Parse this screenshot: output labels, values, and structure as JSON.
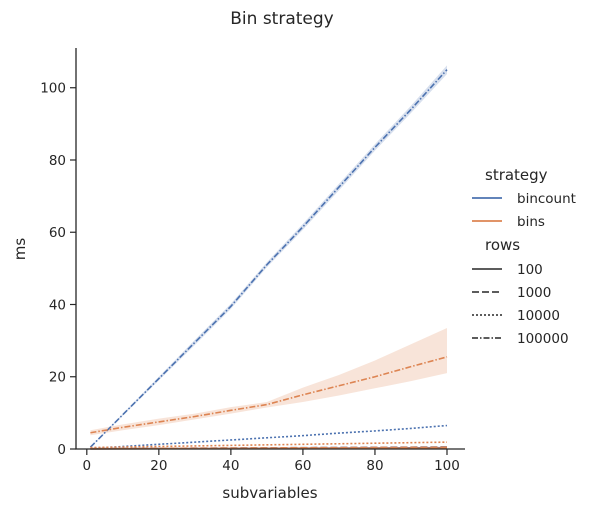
{
  "chart_data": {
    "type": "line",
    "title": "Bin strategy",
    "xlabel": "subvariables",
    "ylabel": "ms",
    "xlim": [
      -3,
      105
    ],
    "ylim": [
      0,
      111
    ],
    "xticks": [
      0,
      20,
      40,
      60,
      80,
      100
    ],
    "yticks": [
      0,
      20,
      40,
      60,
      80,
      100
    ],
    "grid": false,
    "legend_position": "right",
    "legend": {
      "hue_title": "strategy",
      "hue_entries": [
        {
          "label": "bincount",
          "color": "#4c72b0"
        },
        {
          "label": "bins",
          "color": "#dd8452"
        }
      ],
      "style_title": "rows",
      "style_entries": [
        {
          "label": "100",
          "dash": "solid"
        },
        {
          "label": "1000",
          "dash": "dashed"
        },
        {
          "label": "10000",
          "dash": "dotted"
        },
        {
          "label": "100000",
          "dash": "dashdot"
        }
      ]
    },
    "series": [
      {
        "strategy": "bincount",
        "rows": "100",
        "color": "#4c72b0",
        "dash": "solid",
        "x": [
          1,
          10,
          20,
          30,
          40,
          50,
          60,
          70,
          80,
          90,
          100
        ],
        "y": [
          0.05,
          0.08,
          0.11,
          0.14,
          0.17,
          0.2,
          0.23,
          0.26,
          0.29,
          0.32,
          0.35
        ]
      },
      {
        "strategy": "bincount",
        "rows": "1000",
        "color": "#4c72b0",
        "dash": "dashed",
        "x": [
          1,
          10,
          20,
          30,
          40,
          50,
          60,
          70,
          80,
          90,
          100
        ],
        "y": [
          0.08,
          0.12,
          0.17,
          0.22,
          0.27,
          0.32,
          0.37,
          0.42,
          0.47,
          0.52,
          0.57
        ]
      },
      {
        "strategy": "bincount",
        "rows": "10000",
        "color": "#4c72b0",
        "dash": "dotted",
        "x": [
          1,
          10,
          20,
          30,
          40,
          50,
          60,
          70,
          80,
          90,
          100
        ],
        "y": [
          0.15,
          0.7,
          1.3,
          1.9,
          2.5,
          3.1,
          3.7,
          4.4,
          5.0,
          5.7,
          6.5
        ]
      },
      {
        "strategy": "bincount",
        "rows": "100000",
        "color": "#4c72b0",
        "dash": "dashdot",
        "x": [
          1,
          10,
          20,
          30,
          40,
          50,
          60,
          70,
          80,
          90,
          100
        ],
        "y": [
          0.5,
          9.5,
          19.5,
          29.5,
          39.5,
          51.0,
          61.5,
          72.5,
          83.5,
          94.0,
          105.0
        ],
        "ci_low": [
          0.4,
          9.2,
          19.0,
          28.8,
          38.8,
          50.3,
          60.7,
          71.6,
          82.6,
          93.0,
          103.8
        ],
        "ci_high": [
          0.6,
          9.8,
          20.0,
          30.2,
          40.2,
          51.7,
          62.3,
          73.4,
          84.4,
          95.0,
          106.2
        ]
      },
      {
        "strategy": "bins",
        "rows": "100",
        "color": "#dd8452",
        "dash": "solid",
        "x": [
          1,
          10,
          20,
          30,
          40,
          50,
          60,
          70,
          80,
          90,
          100
        ],
        "y": [
          0.03,
          0.05,
          0.07,
          0.09,
          0.11,
          0.13,
          0.15,
          0.17,
          0.19,
          0.21,
          0.23
        ]
      },
      {
        "strategy": "bins",
        "rows": "1000",
        "color": "#dd8452",
        "dash": "dashed",
        "x": [
          1,
          10,
          20,
          30,
          40,
          50,
          60,
          70,
          80,
          90,
          100
        ],
        "y": [
          0.1,
          0.14,
          0.18,
          0.22,
          0.26,
          0.3,
          0.34,
          0.38,
          0.42,
          0.46,
          0.5
        ]
      },
      {
        "strategy": "bins",
        "rows": "10000",
        "color": "#dd8452",
        "dash": "dotted",
        "x": [
          1,
          10,
          20,
          30,
          40,
          50,
          60,
          70,
          80,
          90,
          100
        ],
        "y": [
          0.4,
          0.55,
          0.7,
          0.85,
          1.0,
          1.15,
          1.3,
          1.45,
          1.6,
          1.75,
          1.9
        ]
      },
      {
        "strategy": "bins",
        "rows": "100000",
        "color": "#dd8452",
        "dash": "dashdot",
        "x": [
          1,
          10,
          20,
          30,
          40,
          50,
          60,
          70,
          80,
          90,
          100
        ],
        "y": [
          4.5,
          6.0,
          7.5,
          9.0,
          10.7,
          12.3,
          15.0,
          17.5,
          20.0,
          22.8,
          25.5
        ],
        "ci_low": [
          3.8,
          5.2,
          6.6,
          8.2,
          9.8,
          11.5,
          13.0,
          14.8,
          16.8,
          18.8,
          21.0
        ],
        "ci_high": [
          5.2,
          6.8,
          8.4,
          9.8,
          11.6,
          13.0,
          17.0,
          20.5,
          24.5,
          29.0,
          33.5
        ]
      }
    ]
  }
}
